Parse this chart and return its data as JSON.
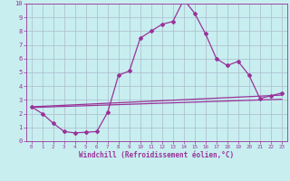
{
  "xlabel": "Windchill (Refroidissement éolien,°C)",
  "bg_color": "#c8eef0",
  "grid_color": "#aabbcc",
  "line_color": "#993399",
  "xlim": [
    -0.5,
    23.5
  ],
  "ylim": [
    0,
    10
  ],
  "xticks": [
    0,
    1,
    2,
    3,
    4,
    5,
    6,
    7,
    8,
    9,
    10,
    11,
    12,
    13,
    14,
    15,
    16,
    17,
    18,
    19,
    20,
    21,
    22,
    23
  ],
  "yticks": [
    0,
    1,
    2,
    3,
    4,
    5,
    6,
    7,
    8,
    9,
    10
  ],
  "line1_x": [
    0,
    1,
    2,
    3,
    4,
    5,
    6,
    7,
    8,
    9,
    10,
    11,
    12,
    13,
    14,
    15,
    16,
    17,
    18,
    19,
    20,
    21,
    22,
    23
  ],
  "line1_y": [
    2.5,
    2.0,
    1.3,
    0.7,
    0.6,
    0.65,
    0.7,
    2.1,
    4.8,
    5.1,
    7.5,
    8.0,
    8.5,
    8.7,
    10.3,
    9.3,
    7.8,
    6.0,
    5.5,
    5.8,
    4.8,
    3.1,
    3.3,
    3.5
  ],
  "line2_x": [
    0,
    23
  ],
  "line2_y": [
    2.5,
    3.35
  ],
  "line3_x": [
    0,
    23
  ],
  "line3_y": [
    2.45,
    3.05
  ],
  "marker": "D",
  "marker_size": 2.0,
  "linewidth": 0.9
}
